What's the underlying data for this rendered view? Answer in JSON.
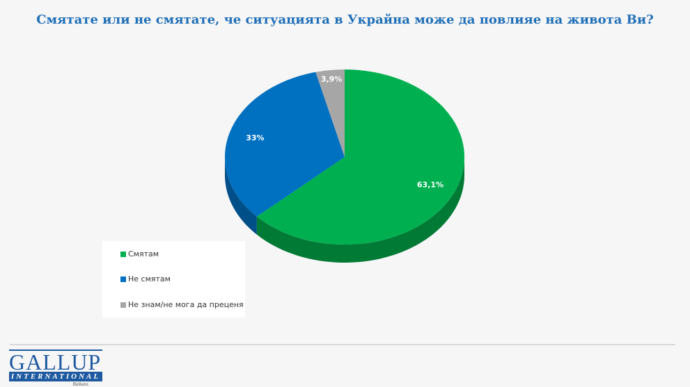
{
  "chart_data": {
    "type": "pie",
    "title": "Смятате или не смятате, че ситуацията в Украйна може да повлияе на живота Ви?",
    "labels": [
      "Смятам",
      "Не смятам",
      "Не знам/не мога да преценя"
    ],
    "values": [
      63.1,
      33,
      3.9
    ],
    "data_labels": [
      "63,1%",
      "33%",
      "3,9%"
    ],
    "colors": [
      "#00b050",
      "#0070c0",
      "#a6a6a6"
    ],
    "side_colors": [
      "#007a35",
      "#004f88",
      "#6e6e6e"
    ],
    "legend_position": "bottom-left",
    "style": "3d"
  },
  "logo": {
    "main": "GALLUP",
    "sub": "INTERNATIONAL",
    "region": "Balkans"
  }
}
